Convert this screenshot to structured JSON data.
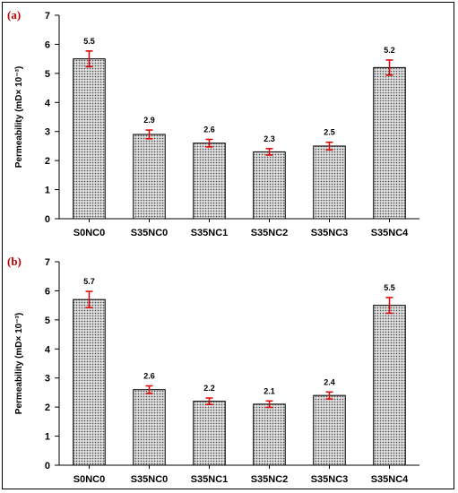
{
  "chart_data": [
    {
      "type": "bar",
      "panel_label": "(a)",
      "categories": [
        "S0NC0",
        "S35NC0",
        "S35NC1",
        "S35NC2",
        "S35NC3",
        "S35NC4"
      ],
      "values": [
        5.5,
        2.9,
        2.6,
        2.3,
        2.5,
        5.2
      ],
      "errors": [
        0.27,
        0.15,
        0.13,
        0.11,
        0.13,
        0.26
      ],
      "ylabel": "Permeability (mD× 10⁻³)",
      "ylim": [
        0,
        7
      ],
      "yticks": [
        0,
        1,
        2,
        3,
        4,
        5,
        6,
        7
      ],
      "data_labels": [
        "5.5",
        "2.9",
        "2.6",
        "2.3",
        "2.5",
        "5.2"
      ],
      "grid": false
    },
    {
      "type": "bar",
      "panel_label": "(b)",
      "categories": [
        "S0NC0",
        "S35NC0",
        "S35NC1",
        "S35NC2",
        "S35NC3",
        "S35NC4"
      ],
      "values": [
        5.7,
        2.6,
        2.2,
        2.1,
        2.4,
        5.5
      ],
      "errors": [
        0.28,
        0.13,
        0.11,
        0.11,
        0.12,
        0.27
      ],
      "ylabel": "Permeability (mD× 10⁻³)",
      "ylim": [
        0,
        7
      ],
      "yticks": [
        0,
        1,
        2,
        3,
        4,
        5,
        6,
        7
      ],
      "data_labels": [
        "5.7",
        "2.6",
        "2.2",
        "2.1",
        "2.4",
        "5.5"
      ],
      "grid": false
    }
  ],
  "colors": {
    "panel_label": "#c00000",
    "error_bar": "#e00000",
    "bar_outline": "#000000",
    "bar_fill_pattern": "dotted-gray"
  }
}
